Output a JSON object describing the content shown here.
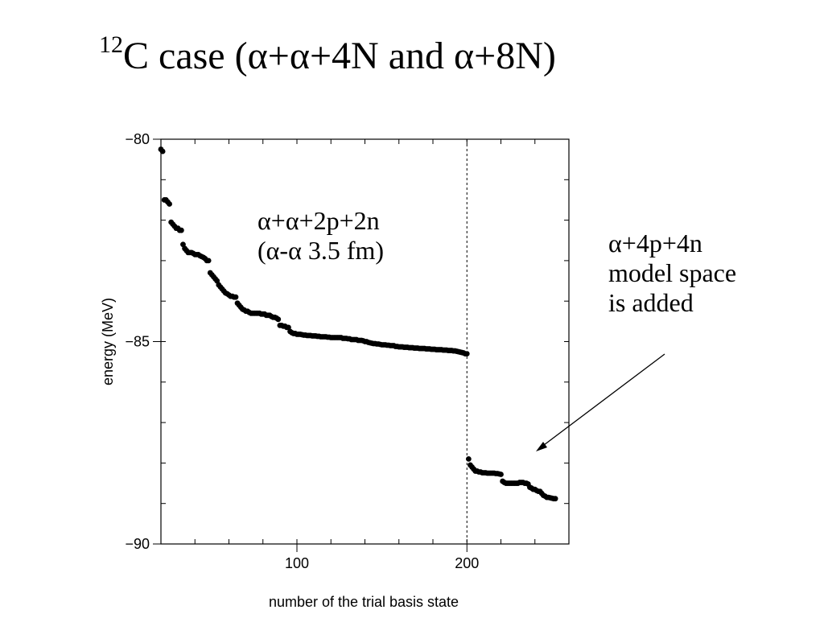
{
  "slide": {
    "title_superscript": "12",
    "title_main": "C case (α+α+4N and α+8N)"
  },
  "annotations": {
    "inner_line1": "α+α+2p+2n",
    "inner_line2": "(α-α 3.5 fm)",
    "right_line1": "α+4p+4n",
    "right_line2": "model space",
    "right_line3": "is added"
  },
  "chart_data": {
    "type": "scatter",
    "title": "",
    "xlabel": "number of the trial basis state",
    "ylabel": "energy (MeV)",
    "xlim": [
      20,
      260
    ],
    "ylim": [
      -90,
      -80
    ],
    "x_ticks": [
      100,
      200
    ],
    "x_tick_labels": [
      "100",
      "200"
    ],
    "y_ticks": [
      -80,
      -85,
      -90
    ],
    "y_tick_labels": [
      "−80",
      "−85",
      "−90"
    ],
    "grid": false,
    "reference_line": {
      "x": 200,
      "style": "dashed"
    },
    "series": [
      {
        "points": [
          [
            20,
            -80.25
          ],
          [
            21,
            -80.3
          ],
          [
            22,
            -81.5
          ],
          [
            23,
            -81.5
          ],
          [
            24,
            -81.55
          ],
          [
            25,
            -81.6
          ],
          [
            26,
            -82.05
          ],
          [
            27,
            -82.1
          ],
          [
            28,
            -82.15
          ],
          [
            29,
            -82.2
          ],
          [
            30,
            -82.2
          ],
          [
            31,
            -82.25
          ],
          [
            32,
            -82.25
          ],
          [
            33,
            -82.6
          ],
          [
            34,
            -82.7
          ],
          [
            35,
            -82.75
          ],
          [
            36,
            -82.8
          ],
          [
            37,
            -82.8
          ],
          [
            38,
            -82.8
          ],
          [
            39,
            -82.82
          ],
          [
            40,
            -82.85
          ],
          [
            41,
            -82.85
          ],
          [
            42,
            -82.85
          ],
          [
            43,
            -82.88
          ],
          [
            44,
            -82.9
          ],
          [
            45,
            -82.92
          ],
          [
            46,
            -82.95
          ],
          [
            47,
            -83.0
          ],
          [
            48,
            -83.0
          ],
          [
            49,
            -83.3
          ],
          [
            50,
            -83.35
          ],
          [
            51,
            -83.4
          ],
          [
            52,
            -83.45
          ],
          [
            53,
            -83.5
          ],
          [
            54,
            -83.6
          ],
          [
            55,
            -83.65
          ],
          [
            56,
            -83.7
          ],
          [
            57,
            -83.75
          ],
          [
            58,
            -83.8
          ],
          [
            59,
            -83.82
          ],
          [
            60,
            -83.85
          ],
          [
            61,
            -83.88
          ],
          [
            62,
            -83.88
          ],
          [
            63,
            -83.9
          ],
          [
            64,
            -83.9
          ],
          [
            65,
            -84.05
          ],
          [
            66,
            -84.1
          ],
          [
            67,
            -84.15
          ],
          [
            68,
            -84.2
          ],
          [
            69,
            -84.22
          ],
          [
            70,
            -84.25
          ],
          [
            71,
            -84.25
          ],
          [
            72,
            -84.28
          ],
          [
            73,
            -84.3
          ],
          [
            74,
            -84.3
          ],
          [
            75,
            -84.3
          ],
          [
            76,
            -84.3
          ],
          [
            77,
            -84.3
          ],
          [
            78,
            -84.3
          ],
          [
            79,
            -84.32
          ],
          [
            80,
            -84.32
          ],
          [
            81,
            -84.32
          ],
          [
            82,
            -84.35
          ],
          [
            83,
            -84.35
          ],
          [
            84,
            -84.35
          ],
          [
            85,
            -84.38
          ],
          [
            86,
            -84.4
          ],
          [
            87,
            -84.4
          ],
          [
            88,
            -84.42
          ],
          [
            89,
            -84.45
          ],
          [
            90,
            -84.6
          ],
          [
            91,
            -84.6
          ],
          [
            92,
            -84.62
          ],
          [
            93,
            -84.62
          ],
          [
            94,
            -84.65
          ],
          [
            95,
            -84.65
          ],
          [
            96,
            -84.75
          ],
          [
            97,
            -84.78
          ],
          [
            98,
            -84.8
          ],
          [
            99,
            -84.8
          ],
          [
            100,
            -84.82
          ],
          [
            101,
            -84.82
          ],
          [
            102,
            -84.82
          ],
          [
            103,
            -84.83
          ],
          [
            104,
            -84.84
          ],
          [
            105,
            -84.84
          ],
          [
            106,
            -84.85
          ],
          [
            107,
            -84.85
          ],
          [
            108,
            -84.85
          ],
          [
            109,
            -84.86
          ],
          [
            110,
            -84.86
          ],
          [
            111,
            -84.86
          ],
          [
            112,
            -84.87
          ],
          [
            113,
            -84.87
          ],
          [
            114,
            -84.88
          ],
          [
            115,
            -84.88
          ],
          [
            116,
            -84.88
          ],
          [
            117,
            -84.88
          ],
          [
            118,
            -84.89
          ],
          [
            119,
            -84.89
          ],
          [
            120,
            -84.9
          ],
          [
            121,
            -84.9
          ],
          [
            122,
            -84.9
          ],
          [
            123,
            -84.9
          ],
          [
            124,
            -84.9
          ],
          [
            125,
            -84.9
          ],
          [
            126,
            -84.9
          ],
          [
            127,
            -84.92
          ],
          [
            128,
            -84.92
          ],
          [
            129,
            -84.92
          ],
          [
            130,
            -84.93
          ],
          [
            131,
            -84.93
          ],
          [
            132,
            -84.95
          ],
          [
            133,
            -84.95
          ],
          [
            134,
            -84.95
          ],
          [
            135,
            -84.95
          ],
          [
            136,
            -84.97
          ],
          [
            137,
            -84.97
          ],
          [
            138,
            -84.97
          ],
          [
            139,
            -84.98
          ],
          [
            140,
            -85.0
          ],
          [
            141,
            -85.0
          ],
          [
            142,
            -85.02
          ],
          [
            143,
            -85.03
          ],
          [
            144,
            -85.04
          ],
          [
            145,
            -85.05
          ],
          [
            146,
            -85.05
          ],
          [
            147,
            -85.06
          ],
          [
            148,
            -85.06
          ],
          [
            149,
            -85.07
          ],
          [
            150,
            -85.08
          ],
          [
            151,
            -85.08
          ],
          [
            152,
            -85.08
          ],
          [
            153,
            -85.09
          ],
          [
            154,
            -85.09
          ],
          [
            155,
            -85.1
          ],
          [
            156,
            -85.1
          ],
          [
            157,
            -85.1
          ],
          [
            158,
            -85.12
          ],
          [
            159,
            -85.12
          ],
          [
            160,
            -85.13
          ],
          [
            161,
            -85.13
          ],
          [
            162,
            -85.13
          ],
          [
            163,
            -85.14
          ],
          [
            164,
            -85.14
          ],
          [
            165,
            -85.14
          ],
          [
            166,
            -85.15
          ],
          [
            167,
            -85.15
          ],
          [
            168,
            -85.15
          ],
          [
            169,
            -85.16
          ],
          [
            170,
            -85.16
          ],
          [
            171,
            -85.16
          ],
          [
            172,
            -85.17
          ],
          [
            173,
            -85.17
          ],
          [
            174,
            -85.17
          ],
          [
            175,
            -85.17
          ],
          [
            176,
            -85.18
          ],
          [
            177,
            -85.18
          ],
          [
            178,
            -85.18
          ],
          [
            179,
            -85.19
          ],
          [
            180,
            -85.19
          ],
          [
            181,
            -85.19
          ],
          [
            182,
            -85.2
          ],
          [
            183,
            -85.2
          ],
          [
            184,
            -85.2
          ],
          [
            185,
            -85.2
          ],
          [
            186,
            -85.21
          ],
          [
            187,
            -85.21
          ],
          [
            188,
            -85.21
          ],
          [
            189,
            -85.22
          ],
          [
            190,
            -85.22
          ],
          [
            191,
            -85.22
          ],
          [
            192,
            -85.23
          ],
          [
            193,
            -85.23
          ],
          [
            194,
            -85.24
          ],
          [
            195,
            -85.25
          ],
          [
            196,
            -85.26
          ],
          [
            197,
            -85.27
          ],
          [
            198,
            -85.28
          ],
          [
            199,
            -85.3
          ],
          [
            200,
            -85.3
          ],
          [
            201,
            -87.9
          ],
          [
            202,
            -88.05
          ],
          [
            203,
            -88.1
          ],
          [
            204,
            -88.15
          ],
          [
            205,
            -88.2
          ],
          [
            206,
            -88.2
          ],
          [
            207,
            -88.22
          ],
          [
            208,
            -88.22
          ],
          [
            209,
            -88.24
          ],
          [
            210,
            -88.24
          ],
          [
            211,
            -88.24
          ],
          [
            212,
            -88.25
          ],
          [
            213,
            -88.25
          ],
          [
            214,
            -88.25
          ],
          [
            215,
            -88.25
          ],
          [
            216,
            -88.25
          ],
          [
            217,
            -88.26
          ],
          [
            218,
            -88.26
          ],
          [
            219,
            -88.27
          ],
          [
            220,
            -88.28
          ],
          [
            221,
            -88.45
          ],
          [
            222,
            -88.48
          ],
          [
            223,
            -88.5
          ],
          [
            224,
            -88.5
          ],
          [
            225,
            -88.5
          ],
          [
            226,
            -88.5
          ],
          [
            227,
            -88.5
          ],
          [
            228,
            -88.5
          ],
          [
            229,
            -88.5
          ],
          [
            230,
            -88.5
          ],
          [
            231,
            -88.48
          ],
          [
            232,
            -88.48
          ],
          [
            233,
            -88.48
          ],
          [
            234,
            -88.5
          ],
          [
            235,
            -88.5
          ],
          [
            236,
            -88.52
          ],
          [
            237,
            -88.6
          ],
          [
            238,
            -88.62
          ],
          [
            239,
            -88.65
          ],
          [
            240,
            -88.65
          ],
          [
            241,
            -88.68
          ],
          [
            242,
            -88.7
          ],
          [
            243,
            -88.7
          ],
          [
            244,
            -88.75
          ],
          [
            245,
            -88.8
          ],
          [
            246,
            -88.82
          ],
          [
            247,
            -88.85
          ],
          [
            248,
            -88.85
          ],
          [
            249,
            -88.86
          ],
          [
            250,
            -88.87
          ],
          [
            251,
            -88.88
          ],
          [
            252,
            -88.88
          ]
        ]
      }
    ]
  }
}
